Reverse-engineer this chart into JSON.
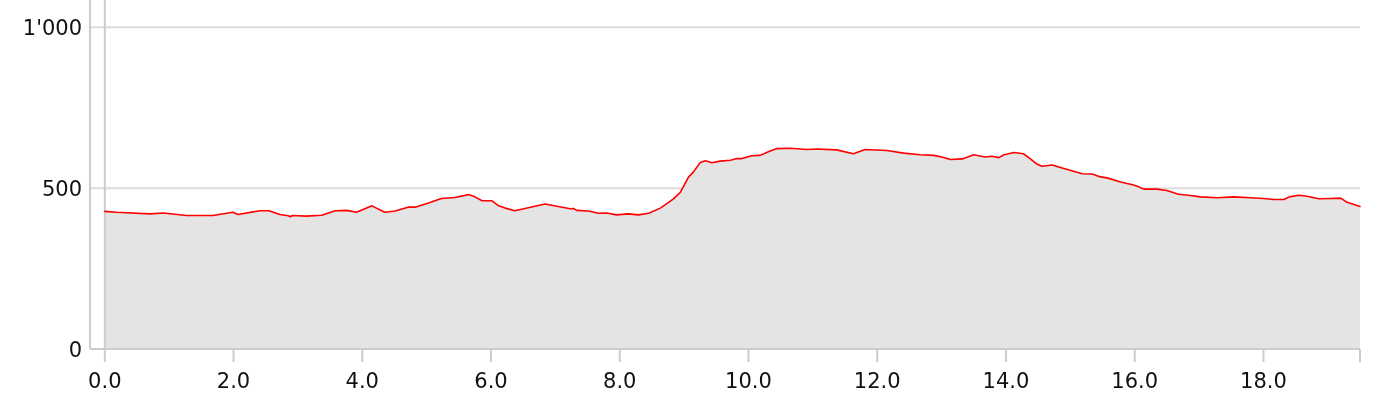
{
  "chart_data": {
    "type": "area",
    "x": [
      0,
      0.18,
      0.7,
      0.91,
      1.27,
      1.68,
      1.99,
      2.07,
      2.41,
      2.55,
      2.72,
      2.85,
      2.88,
      2.92,
      3.13,
      3.37,
      3.58,
      3.76,
      3.91,
      4.15,
      4.35,
      4.51,
      4.71,
      4.82,
      5.03,
      5.23,
      5.44,
      5.65,
      5.75,
      5.86,
      6.01,
      6.12,
      6.22,
      6.37,
      6.84,
      7.23,
      7.28,
      7.33,
      7.51,
      7.67,
      7.8,
      7.95,
      8.13,
      8.29,
      8.45,
      8.63,
      8.83,
      8.94,
      9.07,
      9.14,
      9.25,
      9.33,
      9.43,
      9.56,
      9.72,
      9.82,
      9.9,
      10.05,
      10.18,
      10.26,
      10.44,
      10.65,
      10.91,
      11.06,
      11.37,
      11.63,
      11.81,
      12.15,
      12.41,
      12.67,
      12.88,
      13.0,
      13.14,
      13.32,
      13.5,
      13.68,
      13.78,
      13.89,
      13.96,
      14.12,
      14.27,
      14.38,
      14.48,
      14.56,
      14.72,
      14.9,
      15.13,
      15.18,
      15.34,
      15.47,
      15.57,
      15.78,
      15.98,
      16.04,
      16.14,
      16.35,
      16.5,
      16.68,
      16.87,
      17.02,
      17.28,
      17.54,
      17.8,
      18.0,
      18.16,
      18.32,
      18.4,
      18.55,
      18.68,
      18.86,
      19.04,
      19.2,
      19.3,
      19.5
    ],
    "series": [
      {
        "color": "#ff0000",
        "values": [
          428,
          425,
          420,
          423,
          415,
          415,
          425,
          418,
          430,
          430,
          418,
          414,
          411,
          415,
          413,
          416,
          430,
          431,
          425,
          445,
          425,
          429,
          441,
          441,
          454,
          468,
          471,
          480,
          473,
          461,
          461,
          445,
          438,
          430,
          451,
          436,
          437,
          431,
          429,
          422,
          423,
          417,
          420,
          417,
          422,
          438,
          466,
          487,
          535,
          549,
          580,
          585,
          579,
          584,
          587,
          592,
          592,
          601,
          602,
          609,
          623,
          624,
          620,
          622,
          619,
          607,
          620,
          617,
          609,
          604,
          602,
          597,
          589,
          591,
          604,
          597,
          599,
          595,
          603,
          611,
          607,
          591,
          575,
          568,
          572,
          561,
          548,
          545,
          544,
          535,
          532,
          519,
          510,
          506,
          497,
          497,
          493,
          481,
          477,
          473,
          470,
          473,
          470,
          468,
          465,
          465,
          473,
          478,
          475,
          467,
          468,
          469,
          456,
          443
        ]
      }
    ],
    "xlim": [
      -0.23,
      19.5
    ],
    "xticks": [
      {
        "value": 0,
        "label": "0.0"
      },
      {
        "value": 2,
        "label": "2.0"
      },
      {
        "value": 4,
        "label": "4.0"
      },
      {
        "value": 6,
        "label": "6.0"
      },
      {
        "value": 8,
        "label": "8.0"
      },
      {
        "value": 10,
        "label": "10.0"
      },
      {
        "value": 12,
        "label": "12.0"
      },
      {
        "value": 14,
        "label": "14.0"
      },
      {
        "value": 16,
        "label": "16.0"
      },
      {
        "value": 18,
        "label": "18.0"
      },
      {
        "value": 19.5,
        "label": null
      }
    ],
    "ylim": [
      0,
      1085
    ],
    "yticks": [
      0,
      500,
      {
        "value": 1000,
        "label": "1'000"
      }
    ],
    "grid": "y",
    "line_style": "solid",
    "ref_lines": [
      {
        "axis": "x",
        "value": 0,
        "color": "#cccccc"
      }
    ]
  }
}
